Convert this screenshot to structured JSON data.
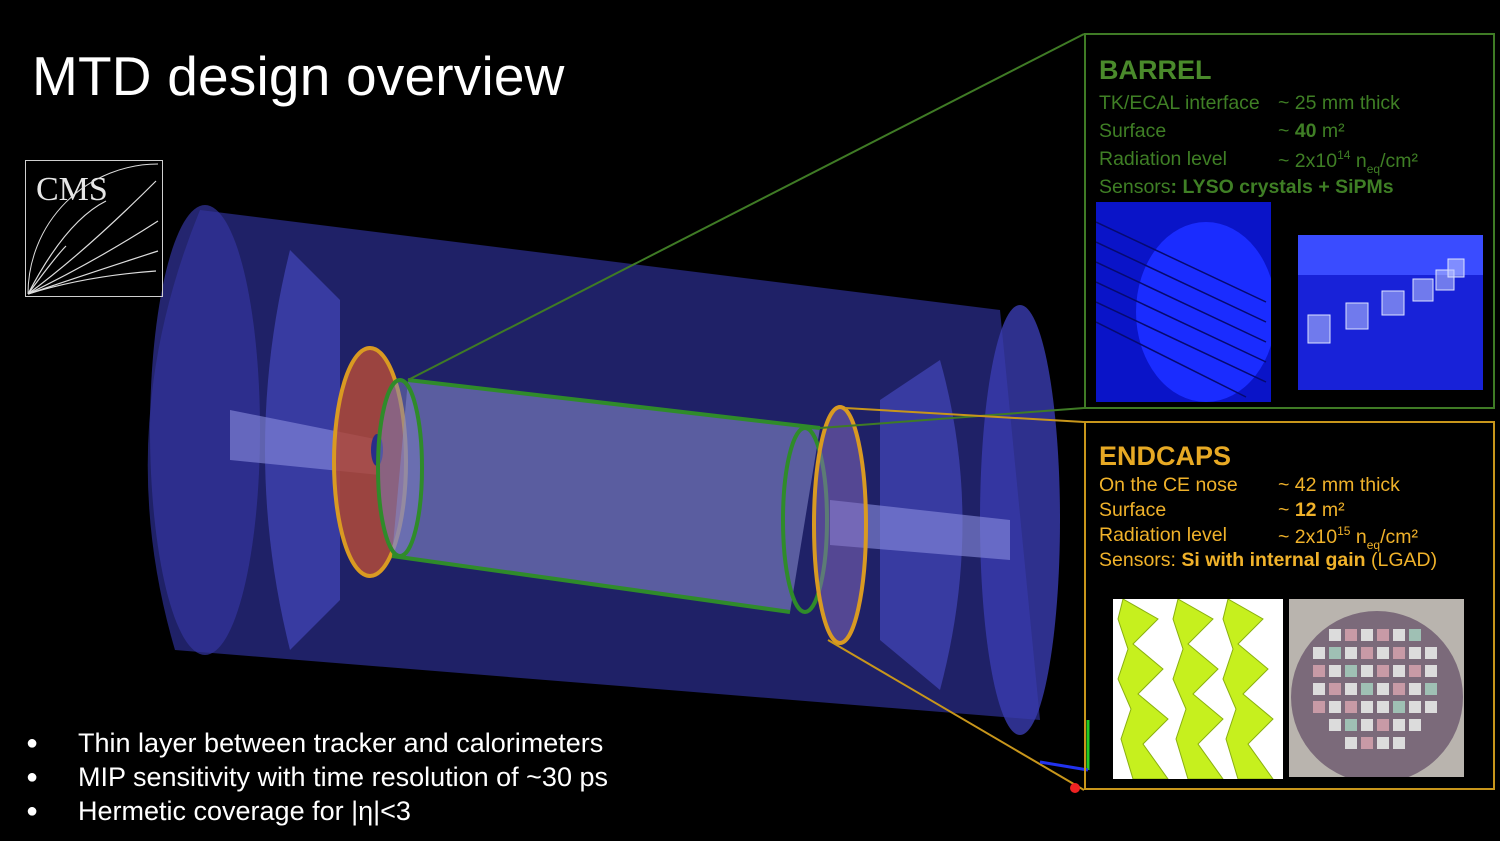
{
  "slide": {
    "title": "MTD design overview"
  },
  "logo": {
    "text": "CMS"
  },
  "bullets": [
    "Thin layer between tracker and calorimeters",
    "MIP sensitivity with time resolution of ~30 ps",
    "Hermetic coverage for |η|<3"
  ],
  "barrel": {
    "title": "BARREL",
    "rows": [
      {
        "label": "TK/ECAL interface",
        "value": "~ 25 mm thick"
      },
      {
        "label": "Surface",
        "value_pre": "~ ",
        "value_bold": "40",
        "value_post": " m²"
      },
      {
        "label": "Radiation level",
        "value_pre": "~ 2x10",
        "sup": "14",
        "value_mid": " n",
        "sub": "eq",
        "value_post": "/cm²"
      },
      {
        "label": "Sensors",
        "value_bold": ": LYSO crystals + SiPMs"
      }
    ],
    "accent": "#3f7b25"
  },
  "endcaps": {
    "title": "ENDCAPS",
    "rows": [
      {
        "label": "On the CE nose",
        "value": "~ 42 mm thick"
      },
      {
        "label": "Surface",
        "value_pre": "~ ",
        "value_bold": "12",
        "value_post": " m²"
      },
      {
        "label": "Radiation level",
        "value_pre": "~ 2x10",
        "sup": "15",
        "value_mid": " n",
        "sub": "eq",
        "value_post": "/cm²"
      },
      {
        "label": "Sensors: ",
        "value_bold": "Si with internal gain",
        "value_post": "  (LGAD)"
      }
    ],
    "accent": "#c8961b"
  }
}
